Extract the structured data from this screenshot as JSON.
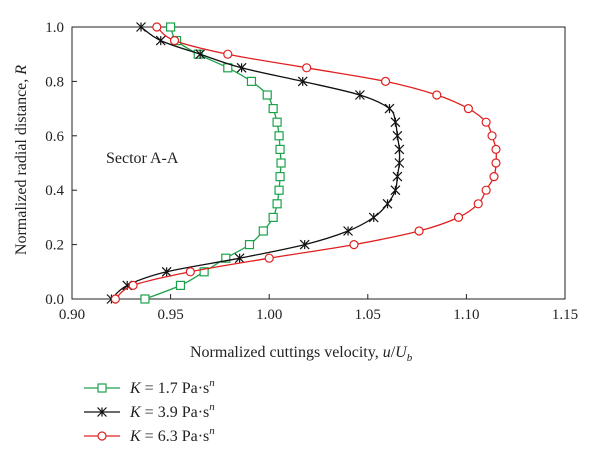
{
  "chart_data": {
    "type": "line",
    "annotation": "Sector A-A",
    "xlabel": "Normalized cuttings velocity, u/U_b",
    "xlabel_parts": {
      "main": "Normalized cuttings velocity, ",
      "u": "u",
      "slash": "/",
      "U": "U",
      "sub": "b"
    },
    "ylabel": "Normalized radial distance, R",
    "ylabel_parts": {
      "main": "Normalized radial distance, ",
      "R": "R"
    },
    "xlim": [
      0.9,
      1.15
    ],
    "ylim": [
      0.0,
      1.0
    ],
    "xticks": [
      "0.90",
      "0.95",
      "1.00",
      "1.05",
      "1.10",
      "1.15"
    ],
    "yticks": [
      "0.0",
      "0.2",
      "0.4",
      "0.6",
      "0.8",
      "1.0"
    ],
    "grid": false,
    "legend_position": "below plot, left",
    "series": [
      {
        "name": "K = 1.7 Pa·s^n",
        "label": {
          "k": "K",
          "rest": " = 1.7 Pa·s",
          "sup": "n"
        },
        "color": "#1aa34a",
        "marker": "square",
        "y": [
          0.0,
          0.05,
          0.1,
          0.15,
          0.2,
          0.25,
          0.3,
          0.35,
          0.4,
          0.45,
          0.5,
          0.55,
          0.6,
          0.65,
          0.7,
          0.75,
          0.8,
          0.85,
          0.9,
          0.95,
          1.0
        ],
        "x": [
          0.937,
          0.955,
          0.967,
          0.978,
          0.99,
          0.997,
          1.002,
          1.004,
          1.005,
          1.0055,
          1.006,
          1.0055,
          1.005,
          1.004,
          1.002,
          0.999,
          0.991,
          0.979,
          0.964,
          0.953,
          0.95
        ]
      },
      {
        "name": "K = 3.9 Pa·s^n",
        "label": {
          "k": "K",
          "rest": " = 3.9 Pa·s",
          "sup": "n"
        },
        "color": "#111111",
        "marker": "asterisk",
        "y": [
          0.0,
          0.05,
          0.1,
          0.15,
          0.2,
          0.25,
          0.3,
          0.35,
          0.4,
          0.45,
          0.5,
          0.55,
          0.6,
          0.65,
          0.7,
          0.75,
          0.8,
          0.85,
          0.9,
          0.95,
          1.0
        ],
        "x": [
          0.92,
          0.928,
          0.948,
          0.985,
          1.018,
          1.04,
          1.053,
          1.06,
          1.064,
          1.065,
          1.066,
          1.066,
          1.065,
          1.064,
          1.061,
          1.046,
          1.017,
          0.986,
          0.965,
          0.945,
          0.935
        ]
      },
      {
        "name": "K = 6.3 Pa·s^n",
        "label": {
          "k": "K",
          "rest": " = 6.3 Pa·s",
          "sup": "n"
        },
        "color": "#e02020",
        "marker": "circle",
        "y": [
          0.0,
          0.05,
          0.1,
          0.15,
          0.2,
          0.25,
          0.3,
          0.35,
          0.4,
          0.45,
          0.5,
          0.55,
          0.6,
          0.65,
          0.7,
          0.75,
          0.8,
          0.85,
          0.9,
          0.95,
          1.0
        ],
        "x": [
          0.922,
          0.931,
          0.96,
          1.0,
          1.043,
          1.076,
          1.096,
          1.106,
          1.11,
          1.114,
          1.115,
          1.115,
          1.113,
          1.11,
          1.101,
          1.085,
          1.059,
          1.019,
          0.979,
          0.952,
          0.943
        ]
      }
    ]
  }
}
